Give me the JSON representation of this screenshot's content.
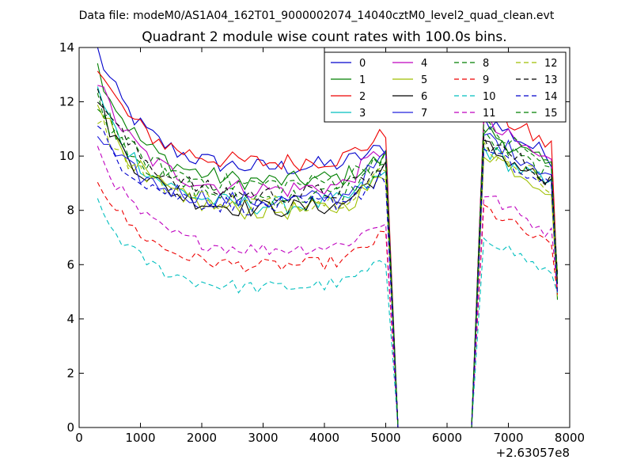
{
  "chart_data": {
    "type": "line",
    "suptitle": "Data file: modeM0/AS1A04_162T01_9000002074_14040cztM0_level2_quad_clean.evt",
    "title": "Quadrant 2 module wise count rates with 100.0s bins.",
    "xlabel": "",
    "ylabel": "",
    "x_offset_label": "+2.63057e8",
    "xlim": [
      0,
      8000
    ],
    "ylim": [
      0,
      14
    ],
    "x_ticks": [
      "0",
      "1000",
      "2000",
      "3000",
      "4000",
      "5000",
      "6000",
      "7000",
      "8000"
    ],
    "y_ticks": [
      "0",
      "2",
      "4",
      "6",
      "8",
      "10",
      "12",
      "14"
    ],
    "legend_position": "top-right",
    "series": [
      {
        "name": "0",
        "color": "#0000cc",
        "dash": "solid",
        "base": 9.9,
        "start": 13.9,
        "noise": 0.35,
        "tail": 10.2
      },
      {
        "name": "1",
        "color": "#007f00",
        "dash": "solid",
        "base": 9.4,
        "start": 13.3,
        "noise": 0.35,
        "tail": 9.8
      },
      {
        "name": "2",
        "color": "#ee0000",
        "dash": "solid",
        "base": 10.1,
        "start": 13.3,
        "noise": 0.35,
        "tail": 10.6
      },
      {
        "name": "3",
        "color": "#00bfbf",
        "dash": "solid",
        "base": 8.5,
        "start": 12.4,
        "noise": 0.35,
        "tail": 9.1
      },
      {
        "name": "4",
        "color": "#bf00bf",
        "dash": "solid",
        "base": 9.1,
        "start": 12.8,
        "noise": 0.35,
        "tail": 10.0
      },
      {
        "name": "5",
        "color": "#9fbf00",
        "dash": "solid",
        "base": 8.3,
        "start": 12.2,
        "noise": 0.35,
        "tail": 9.0
      },
      {
        "name": "6",
        "color": "#000000",
        "dash": "solid",
        "base": 8.4,
        "start": 12.0,
        "noise": 0.35,
        "tail": 9.2
      },
      {
        "name": "7",
        "color": "#2020dd",
        "dash": "solid",
        "base": 8.7,
        "start": 10.8,
        "noise": 0.35,
        "tail": 9.6
      },
      {
        "name": "8",
        "color": "#007f00",
        "dash": "dashed",
        "base": 8.8,
        "start": 12.3,
        "noise": 0.35,
        "tail": 9.5
      },
      {
        "name": "9",
        "color": "#ee0000",
        "dash": "dashed",
        "base": 6.3,
        "start": 9.2,
        "noise": 0.25,
        "tail": 6.9
      },
      {
        "name": "10",
        "color": "#00bfbf",
        "dash": "dashed",
        "base": 5.5,
        "start": 8.2,
        "noise": 0.25,
        "tail": 5.9
      },
      {
        "name": "11",
        "color": "#bf00bf",
        "dash": "dashed",
        "base": 6.9,
        "start": 10.3,
        "noise": 0.25,
        "tail": 7.4
      },
      {
        "name": "12",
        "color": "#9fbf00",
        "dash": "dashed",
        "base": 8.6,
        "start": 11.5,
        "noise": 0.35,
        "tail": 9.2
      },
      {
        "name": "13",
        "color": "#000000",
        "dash": "dashed",
        "base": 8.9,
        "start": 12.5,
        "noise": 0.35,
        "tail": 9.4
      },
      {
        "name": "14",
        "color": "#0000cc",
        "dash": "dashed",
        "base": 8.5,
        "start": 11.0,
        "noise": 0.35,
        "tail": 9.0
      },
      {
        "name": "15",
        "color": "#007f00",
        "dash": "dashed",
        "base": 9.3,
        "start": 11.8,
        "noise": 0.35,
        "tail": 9.9
      }
    ],
    "segments": {
      "seg1_x": [
        300,
        5000
      ],
      "gap_x": [
        5200,
        6400
      ],
      "seg2_x": [
        6600,
        7800
      ],
      "bin": 100,
      "end_drop": 5.3
    }
  }
}
